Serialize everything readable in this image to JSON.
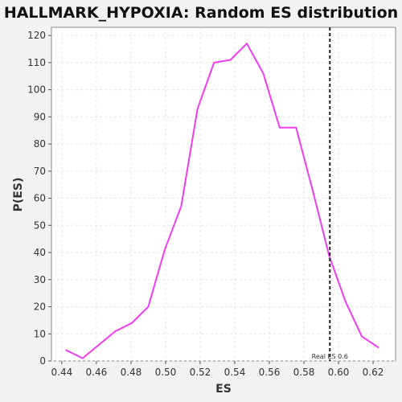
{
  "colors": {
    "page_background": "#f2f2f2",
    "plot_background": "#ffffff",
    "series": "#f03cf0",
    "reference_line": "#222222"
  },
  "chart_data": {
    "type": "line",
    "title": "HALLMARK_HYPOXIA: Random ES distribution",
    "xlabel": "ES",
    "ylabel": "P(ES)",
    "xlim": [
      0.434,
      0.633
    ],
    "ylim": [
      0,
      123
    ],
    "grid": true,
    "xticks": [
      0.44,
      0.46,
      0.48,
      0.5,
      0.52,
      0.54,
      0.56,
      0.58,
      0.6,
      0.62
    ],
    "yticks": [
      0,
      10,
      20,
      30,
      40,
      50,
      60,
      70,
      80,
      90,
      100,
      110,
      120
    ],
    "xtick_labels": [
      "0.44",
      "0.46",
      "0.48",
      "0.50",
      "0.52",
      "0.54",
      "0.56",
      "0.58",
      "0.60",
      "0.62"
    ],
    "ytick_labels": [
      "0",
      "10",
      "20",
      "30",
      "40",
      "50",
      "60",
      "70",
      "80",
      "90",
      "100",
      "110",
      "120"
    ],
    "series": [
      {
        "x": [
          0.4425,
          0.452,
          0.4615,
          0.471,
          0.4805,
          0.49,
          0.4995,
          0.509,
          0.5185,
          0.528,
          0.5375,
          0.547,
          0.5565,
          0.566,
          0.5755,
          0.585,
          0.5945,
          0.604,
          0.6135,
          0.623
        ],
        "y": [
          4,
          1,
          6,
          11,
          14,
          20,
          41,
          57,
          93,
          110,
          111,
          117,
          106,
          86,
          86,
          63,
          39,
          22,
          9,
          5
        ]
      }
    ],
    "reference_line": {
      "x": 0.595,
      "label": "Real ES 0.6"
    }
  }
}
